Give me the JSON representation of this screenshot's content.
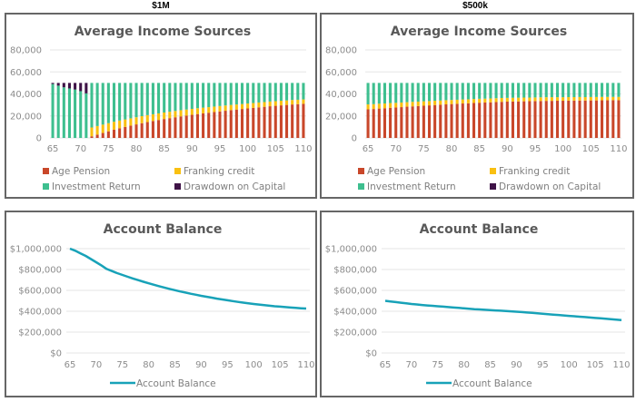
{
  "columns": [
    {
      "label": "$1M"
    },
    {
      "label": "$500k"
    }
  ],
  "colors": {
    "age_pension": "#c9472a",
    "franking": "#f9c011",
    "investment": "#3ebf8f",
    "drawdown": "#3f1347",
    "balance": "#18a2b8",
    "grid": "#e6e6e6"
  },
  "chart_data": [
    {
      "id": "income-1m",
      "type": "bar",
      "stacked": true,
      "title": "Average Income Sources",
      "xlabel": "",
      "ylabel": "",
      "ylim": [
        0,
        80000
      ],
      "yticks": [
        "0",
        "20,000",
        "40,000",
        "60,000",
        "80,000"
      ],
      "ytick_values": [
        0,
        20000,
        40000,
        60000,
        80000
      ],
      "xticks": [
        "65",
        "70",
        "75",
        "80",
        "85",
        "90",
        "95",
        "100",
        "105",
        "110"
      ],
      "categories": [
        65,
        66,
        67,
        68,
        69,
        70,
        71,
        72,
        73,
        74,
        75,
        76,
        77,
        78,
        79,
        80,
        81,
        82,
        83,
        84,
        85,
        86,
        87,
        88,
        89,
        90,
        91,
        92,
        93,
        94,
        95,
        96,
        97,
        98,
        99,
        100,
        101,
        102,
        103,
        104,
        105,
        106,
        107,
        108,
        109,
        110
      ],
      "legend_position": "bottom",
      "series": [
        {
          "name": "Age Pension",
          "key": "age_pension",
          "values": [
            0,
            0,
            0,
            0,
            0,
            0,
            0,
            1500,
            3000,
            4500,
            6000,
            7500,
            8800,
            10000,
            11200,
            12300,
            13400,
            14400,
            15400,
            16300,
            17200,
            18000,
            18800,
            19600,
            20300,
            21000,
            21700,
            22300,
            22900,
            23500,
            24100,
            24700,
            25300,
            25800,
            26300,
            26800,
            27300,
            27800,
            28300,
            28800,
            29200,
            29600,
            30000,
            30400,
            30700,
            31000
          ]
        },
        {
          "name": "Franking credit",
          "key": "franking",
          "values": [
            0,
            0,
            0,
            0,
            0,
            0,
            0,
            8000,
            7800,
            7600,
            7400,
            7200,
            7000,
            6800,
            6600,
            6500,
            6400,
            6300,
            6100,
            6000,
            5900,
            5800,
            5700,
            5600,
            5500,
            5400,
            5300,
            5200,
            5100,
            5000,
            4900,
            4800,
            4700,
            4600,
            4500,
            4500,
            4400,
            4400,
            4300,
            4300,
            4200,
            4200,
            4100,
            4100,
            4000,
            4000
          ]
        },
        {
          "name": "Investment Return",
          "key": "investment",
          "values": [
            49000,
            47500,
            46000,
            45000,
            44000,
            42500,
            40500,
            40500,
            39200,
            37900,
            36600,
            35300,
            34200,
            33200,
            32200,
            31200,
            30200,
            29300,
            28500,
            27700,
            26900,
            26200,
            25500,
            24800,
            24200,
            23600,
            23000,
            22500,
            22000,
            21500,
            21000,
            20500,
            20000,
            19600,
            19200,
            18700,
            18300,
            17800,
            17400,
            16900,
            16600,
            16200,
            15900,
            15500,
            15300,
            15000
          ]
        },
        {
          "name": "Drawdown on Capital",
          "key": "drawdown",
          "values": [
            1000,
            2500,
            4000,
            5000,
            6000,
            7500,
            9500,
            0,
            0,
            0,
            0,
            0,
            0,
            0,
            0,
            0,
            0,
            0,
            0,
            0,
            0,
            0,
            0,
            0,
            0,
            0,
            0,
            0,
            0,
            0,
            0,
            0,
            0,
            0,
            0,
            0,
            0,
            0,
            0,
            0,
            0,
            0,
            0,
            0,
            0,
            0
          ]
        }
      ]
    },
    {
      "id": "income-500k",
      "type": "bar",
      "stacked": true,
      "title": "Average Income Sources",
      "xlabel": "",
      "ylabel": "",
      "ylim": [
        0,
        80000
      ],
      "yticks": [
        "0",
        "20,000",
        "40,000",
        "60,000",
        "80,000"
      ],
      "ytick_values": [
        0,
        20000,
        40000,
        60000,
        80000
      ],
      "xticks": [
        "65",
        "70",
        "75",
        "80",
        "85",
        "90",
        "95",
        "100",
        "105",
        "110"
      ],
      "categories": [
        65,
        66,
        67,
        68,
        69,
        70,
        71,
        72,
        73,
        74,
        75,
        76,
        77,
        78,
        79,
        80,
        81,
        82,
        83,
        84,
        85,
        86,
        87,
        88,
        89,
        90,
        91,
        92,
        93,
        94,
        95,
        96,
        97,
        98,
        99,
        100,
        101,
        102,
        103,
        104,
        105,
        106,
        107,
        108,
        109,
        110
      ],
      "legend_position": "bottom",
      "series": [
        {
          "name": "Age Pension",
          "key": "age_pension",
          "values": [
            26000,
            26300,
            26700,
            27000,
            27400,
            27700,
            28000,
            28400,
            28700,
            29000,
            29300,
            29600,
            29900,
            30200,
            30500,
            30800,
            31000,
            31300,
            31500,
            31800,
            32000,
            32200,
            32400,
            32600,
            32800,
            33000,
            33100,
            33200,
            33300,
            33400,
            33500,
            33600,
            33700,
            33700,
            33800,
            33800,
            33900,
            33900,
            34000,
            34000,
            34100,
            34100,
            34200,
            34200,
            34300,
            34300
          ]
        },
        {
          "name": "Franking credit",
          "key": "franking",
          "values": [
            4500,
            4400,
            4400,
            4300,
            4300,
            4200,
            4200,
            4100,
            4100,
            4000,
            4000,
            3900,
            3900,
            3800,
            3800,
            3700,
            3700,
            3700,
            3600,
            3600,
            3600,
            3500,
            3500,
            3500,
            3500,
            3400,
            3400,
            3400,
            3400,
            3300,
            3300,
            3300,
            3300,
            3300,
            3200,
            3200,
            3200,
            3200,
            3200,
            3100,
            3100,
            3100,
            3100,
            3100,
            3000,
            3000
          ]
        },
        {
          "name": "Investment Return",
          "key": "investment",
          "values": [
            19500,
            19300,
            18900,
            18700,
            18300,
            18100,
            17800,
            17500,
            17200,
            17000,
            16700,
            16500,
            16200,
            16000,
            15700,
            15500,
            15300,
            15000,
            14900,
            14600,
            14400,
            14300,
            14100,
            13900,
            13700,
            13600,
            13500,
            13400,
            13300,
            13300,
            13200,
            13100,
            13000,
            13000,
            13000,
            13000,
            12900,
            12900,
            12800,
            12900,
            12800,
            12800,
            12700,
            12700,
            12700,
            12700
          ]
        },
        {
          "name": "Drawdown on Capital",
          "key": "drawdown",
          "values": [
            0,
            0,
            0,
            0,
            0,
            0,
            0,
            0,
            0,
            0,
            0,
            0,
            0,
            0,
            0,
            0,
            0,
            0,
            0,
            0,
            0,
            0,
            0,
            0,
            0,
            0,
            0,
            0,
            0,
            0,
            0,
            0,
            0,
            0,
            0,
            0,
            0,
            0,
            0,
            0,
            0,
            0,
            0,
            0,
            0,
            0
          ]
        }
      ]
    },
    {
      "id": "balance-1m",
      "type": "line",
      "title": "Account Balance",
      "xlabel": "",
      "ylabel": "",
      "ylim": [
        0,
        1000000
      ],
      "yticks": [
        "$0",
        "$200,000",
        "$400,000",
        "$600,000",
        "$800,000",
        "$1,000,000"
      ],
      "ytick_values": [
        0,
        200000,
        400000,
        600000,
        800000,
        1000000
      ],
      "xticks": [
        "65",
        "70",
        "75",
        "80",
        "85",
        "90",
        "95",
        "100",
        "105",
        "110"
      ],
      "legend_position": "bottom",
      "series": [
        {
          "name": "Account Balance",
          "key": "balance",
          "x": [
            65,
            66,
            67,
            68,
            69,
            70,
            71,
            72,
            73,
            74,
            75,
            76,
            77,
            78,
            79,
            80,
            81,
            82,
            83,
            84,
            85,
            86,
            87,
            88,
            89,
            90,
            91,
            92,
            93,
            94,
            95,
            96,
            97,
            98,
            99,
            100,
            101,
            102,
            103,
            104,
            105,
            106,
            107,
            108,
            109,
            110
          ],
          "values": [
            1000000,
            980000,
            955000,
            930000,
            900000,
            870000,
            838000,
            805000,
            785000,
            765000,
            748000,
            730000,
            714000,
            698000,
            683000,
            668000,
            654000,
            640000,
            627000,
            614000,
            602000,
            590000,
            579000,
            568000,
            558000,
            548000,
            539000,
            530000,
            521000,
            513000,
            505000,
            497000,
            490000,
            483000,
            476000,
            470000,
            464000,
            458000,
            453000,
            448000,
            444000,
            440000,
            436000,
            432000,
            429000,
            426000
          ]
        }
      ]
    },
    {
      "id": "balance-500k",
      "type": "line",
      "title": "Account Balance",
      "xlabel": "",
      "ylabel": "",
      "ylim": [
        0,
        1000000
      ],
      "yticks": [
        "$0",
        "$200,000",
        "$400,000",
        "$600,000",
        "$800,000",
        "$1,000,000"
      ],
      "ytick_values": [
        0,
        200000,
        400000,
        600000,
        800000,
        1000000
      ],
      "xticks": [
        "65",
        "70",
        "75",
        "80",
        "85",
        "90",
        "95",
        "100",
        "105",
        "110"
      ],
      "legend_position": "bottom",
      "series": [
        {
          "name": "Account Balance",
          "key": "balance",
          "x": [
            65,
            66,
            67,
            68,
            69,
            70,
            71,
            72,
            73,
            74,
            75,
            76,
            77,
            78,
            79,
            80,
            81,
            82,
            83,
            84,
            85,
            86,
            87,
            88,
            89,
            90,
            91,
            92,
            93,
            94,
            95,
            96,
            97,
            98,
            99,
            100,
            101,
            102,
            103,
            104,
            105,
            106,
            107,
            108,
            109,
            110
          ],
          "values": [
            500000,
            494000,
            488000,
            482000,
            476000,
            470000,
            465000,
            460000,
            456000,
            452000,
            448000,
            444000,
            440000,
            436000,
            432000,
            428000,
            424000,
            420000,
            417000,
            414000,
            411000,
            408000,
            405000,
            402000,
            399000,
            396000,
            392000,
            388000,
            384000,
            380000,
            376000,
            372000,
            368000,
            364000,
            360000,
            356000,
            352000,
            348000,
            344000,
            340000,
            336000,
            332000,
            328000,
            324000,
            320000,
            316000
          ]
        }
      ]
    }
  ]
}
